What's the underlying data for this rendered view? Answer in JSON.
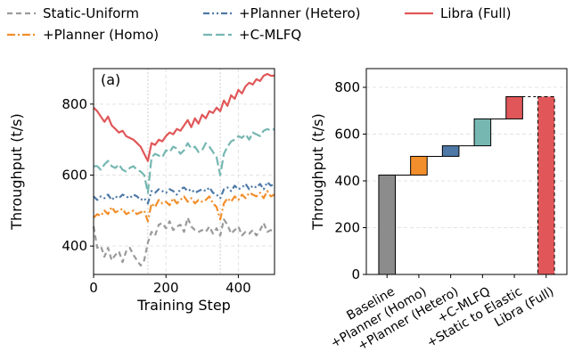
{
  "colors": {
    "static_uniform": "#9a9a9a",
    "planner_homo": "#f28e2b",
    "planner_hetero": "#4e79a7",
    "cmlfq": "#76b7b2",
    "libra": "#e15759",
    "baseline_bar": "#8c8c8c"
  },
  "legend": [
    {
      "label": "Static-Uniform",
      "key": "static_uniform",
      "dash": "6,4"
    },
    {
      "label": "+Planner (Homo)",
      "key": "planner_homo",
      "dash": "9,3,2,3"
    },
    {
      "label": "+Planner (Hetero)",
      "key": "planner_hetero",
      "dash": "7,3,2,3,2,3"
    },
    {
      "label": "+C-MLFQ",
      "key": "cmlfq",
      "dash": "10,4"
    },
    {
      "label": "Libra (Full)",
      "key": "libra",
      "dash": ""
    }
  ],
  "chart_data": [
    {
      "type": "line",
      "panel_label": "(a)",
      "xlabel": "Training Step",
      "ylabel": "Throughput (t/s)",
      "xlim": [
        0,
        500
      ],
      "ylim": [
        320,
        900
      ],
      "xticks": [
        0,
        200,
        400
      ],
      "yticks": [
        400,
        600,
        800
      ],
      "grid": true,
      "vlines": [
        150,
        350
      ],
      "x": [
        0,
        10,
        20,
        30,
        40,
        50,
        60,
        70,
        80,
        90,
        100,
        110,
        120,
        130,
        140,
        150,
        160,
        170,
        180,
        190,
        200,
        210,
        220,
        230,
        240,
        250,
        260,
        270,
        280,
        290,
        300,
        310,
        320,
        330,
        340,
        350,
        360,
        370,
        380,
        390,
        400,
        410,
        420,
        430,
        440,
        450,
        460,
        470,
        480,
        490,
        500
      ],
      "series": [
        {
          "name": "Static-Uniform",
          "key": "static_uniform",
          "values": [
            455,
            395,
            400,
            370,
            395,
            360,
            375,
            385,
            355,
            385,
            395,
            375,
            360,
            345,
            360,
            410,
            440,
            430,
            460,
            465,
            450,
            470,
            445,
            455,
            460,
            440,
            480,
            455,
            445,
            440,
            445,
            440,
            455,
            435,
            450,
            430,
            475,
            460,
            435,
            445,
            455,
            430,
            440,
            435,
            445,
            430,
            445,
            465,
            440,
            445,
            440
          ]
        },
        {
          "name": "+Planner (Homo)",
          "key": "planner_homo",
          "values": [
            480,
            490,
            485,
            500,
            490,
            510,
            495,
            500,
            505,
            490,
            495,
            500,
            490,
            495,
            500,
            470,
            520,
            510,
            530,
            520,
            525,
            515,
            535,
            520,
            530,
            540,
            525,
            535,
            520,
            530,
            525,
            530,
            540,
            520,
            510,
            475,
            520,
            535,
            525,
            540,
            530,
            545,
            535,
            550,
            545,
            540,
            550,
            535,
            555,
            540,
            545
          ]
        },
        {
          "name": "+Planner (Hetero)",
          "key": "planner_hetero",
          "values": [
            540,
            530,
            540,
            535,
            545,
            530,
            540,
            535,
            545,
            540,
            535,
            545,
            540,
            530,
            535,
            520,
            555,
            550,
            560,
            555,
            550,
            560,
            555,
            545,
            560,
            565,
            555,
            560,
            550,
            555,
            560,
            555,
            565,
            550,
            545,
            535,
            560,
            565,
            555,
            570,
            560,
            565,
            575,
            560,
            570,
            565,
            575,
            560,
            580,
            570,
            575
          ]
        },
        {
          "name": "+C-MLFQ",
          "key": "cmlfq",
          "values": [
            625,
            625,
            615,
            630,
            640,
            625,
            620,
            630,
            615,
            610,
            620,
            625,
            615,
            610,
            600,
            550,
            650,
            660,
            655,
            650,
            670,
            665,
            680,
            675,
            660,
            670,
            690,
            675,
            680,
            665,
            670,
            690,
            680,
            665,
            650,
            600,
            660,
            680,
            695,
            700,
            710,
            705,
            715,
            700,
            720,
            715,
            710,
            725,
            730,
            725,
            730
          ]
        },
        {
          "name": "Libra (Full)",
          "key": "libra",
          "values": [
            790,
            780,
            765,
            750,
            765,
            740,
            730,
            720,
            725,
            710,
            705,
            700,
            690,
            680,
            660,
            640,
            690,
            685,
            700,
            695,
            710,
            720,
            715,
            730,
            725,
            740,
            755,
            735,
            760,
            745,
            770,
            760,
            780,
            775,
            790,
            780,
            810,
            795,
            825,
            815,
            840,
            830,
            850,
            860,
            855,
            870,
            865,
            880,
            885,
            880,
            880
          ]
        }
      ]
    },
    {
      "type": "bar",
      "subtype": "waterfall",
      "ylabel": "Throughput (t/s)",
      "ylim": [
        0,
        880
      ],
      "yticks": [
        0,
        200,
        400,
        600,
        800
      ],
      "grid": true,
      "categories": [
        "Baseline",
        "+Planner (Homo)",
        "+Planner (Hetero)",
        "+C-MLFQ",
        "+Static to Elastic",
        "Libra (Full)"
      ],
      "bars": [
        {
          "label": "Baseline",
          "bottom": 0,
          "top": 425,
          "color_key": "baseline_bar"
        },
        {
          "label": "+Planner (Homo)",
          "bottom": 425,
          "top": 505,
          "color_key": "planner_homo"
        },
        {
          "label": "+Planner (Hetero)",
          "bottom": 505,
          "top": 550,
          "color_key": "planner_hetero"
        },
        {
          "label": "+C-MLFQ",
          "bottom": 550,
          "top": 665,
          "color_key": "cmlfq"
        },
        {
          "label": "+Static to Elastic",
          "bottom": 665,
          "top": 760,
          "color_key": "libra"
        },
        {
          "label": "Libra (Full)",
          "bottom": 0,
          "top": 760,
          "color_key": "libra"
        }
      ]
    }
  ]
}
